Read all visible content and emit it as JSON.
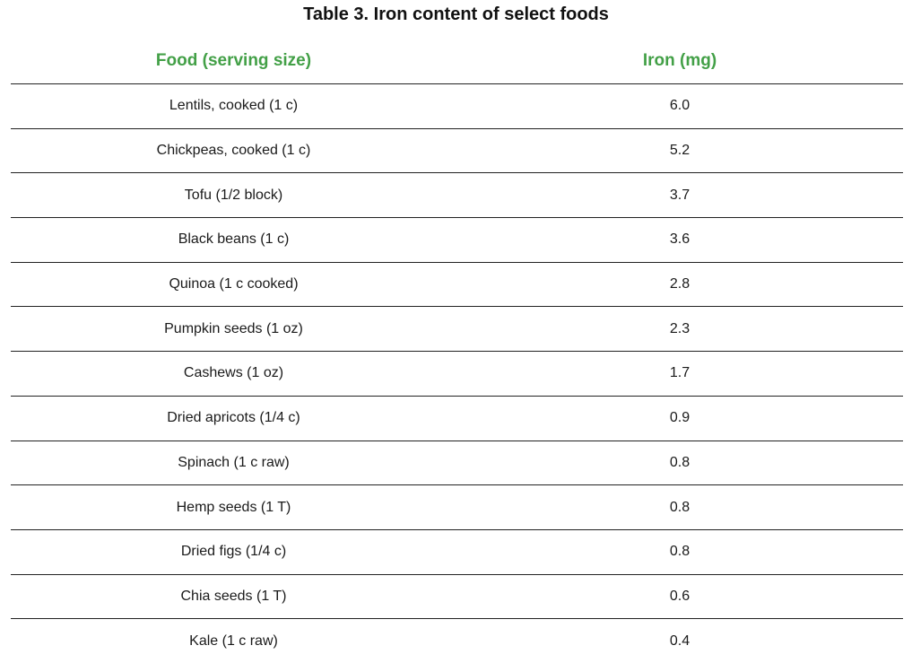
{
  "title": "Table 3. Iron content of select foods",
  "colors": {
    "header_text": "#43a047",
    "rule": "#222222",
    "body_text": "#1a1a1a"
  },
  "columns": {
    "food": "Food (serving size)",
    "iron": "Iron (mg)"
  },
  "rows": [
    {
      "food": "Lentils, cooked (1 c)",
      "iron": "6.0"
    },
    {
      "food": "Chickpeas, cooked (1 c)",
      "iron": "5.2"
    },
    {
      "food": "Tofu (1/2 block)",
      "iron": "3.7"
    },
    {
      "food": "Black beans (1 c)",
      "iron": "3.6"
    },
    {
      "food": "Quinoa (1 c cooked)",
      "iron": "2.8"
    },
    {
      "food": "Pumpkin seeds (1 oz)",
      "iron": "2.3"
    },
    {
      "food": "Cashews (1 oz)",
      "iron": "1.7"
    },
    {
      "food": "Dried apricots (1/4 c)",
      "iron": "0.9"
    },
    {
      "food": "Spinach (1 c raw)",
      "iron": "0.8"
    },
    {
      "food": "Hemp seeds (1 T)",
      "iron": "0.8"
    },
    {
      "food": "Dried figs (1/4 c)",
      "iron": "0.8"
    },
    {
      "food": "Chia seeds (1 T)",
      "iron": "0.6"
    },
    {
      "food": "Kale (1 c raw)",
      "iron": "0.4"
    }
  ]
}
